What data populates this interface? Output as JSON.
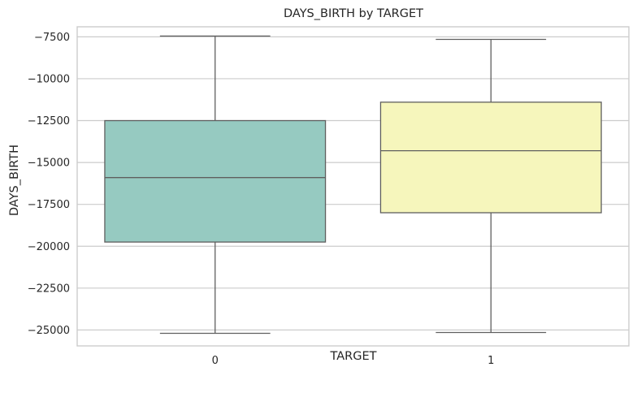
{
  "chart_data": {
    "type": "box",
    "title": "DAYS_BIRTH by TARGET",
    "xlabel": "TARGET",
    "ylabel": "DAYS_BIRTH",
    "categories": [
      "0",
      "1"
    ],
    "ylim": [
      -25950,
      -6900
    ],
    "yticks": [
      -7500,
      -10000,
      -12500,
      -15000,
      -17500,
      -20000,
      -22500,
      -25000
    ],
    "ytick_labels": [
      "−7500",
      "−10000",
      "−12500",
      "−15000",
      "−17500",
      "−20000",
      "−22500",
      "−25000"
    ],
    "grid": "horizontal",
    "boxes": [
      {
        "category": "0",
        "whisker_low": -25200,
        "q1": -19750,
        "median": -15900,
        "q3": -12500,
        "whisker_high": -7450,
        "color": "#96cac1"
      },
      {
        "category": "1",
        "whisker_low": -25150,
        "q1": -18000,
        "median": -14300,
        "q3": -11400,
        "whisker_high": -7650,
        "color": "#f6f6bc"
      }
    ],
    "line_color": "#5f5f5f",
    "grid_color": "#cccccc",
    "spine_color": "#cccccc"
  }
}
